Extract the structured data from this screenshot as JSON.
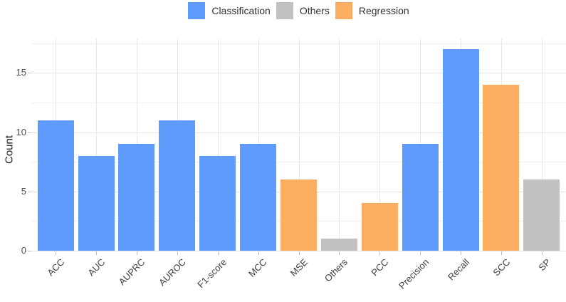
{
  "colors": {
    "classification": "#5E9BFC",
    "others": "#C1C1C1",
    "regression": "#FBAD62",
    "grid_major": "#E3E3E3",
    "grid_minor": "#EFEFEF",
    "grid_vertical": "#E7E7E7",
    "tick_mark": "#BDBDBD",
    "axis_text": "#404040",
    "background": "#FFFFFF"
  },
  "chart_data": {
    "type": "bar",
    "title": "",
    "xlabel": "",
    "ylabel": "Count",
    "categories": [
      "ACC",
      "AUC",
      "AUPRC",
      "AUROC",
      "F1-score",
      "MCC",
      "MSE",
      "Others",
      "PCC",
      "Precision",
      "Recall",
      "SCC",
      "SP"
    ],
    "values": [
      11,
      8,
      9,
      11,
      8,
      9,
      6,
      1,
      4,
      9,
      17,
      14,
      6
    ],
    "groups": [
      "Classification",
      "Classification",
      "Classification",
      "Classification",
      "Classification",
      "Classification",
      "Regression",
      "Others",
      "Regression",
      "Classification",
      "Classification",
      "Regression",
      "Others"
    ],
    "legend": [
      {
        "label": "Classification",
        "color": "#5E9BFC"
      },
      {
        "label": "Others",
        "color": "#C1C1C1"
      },
      {
        "label": "Regression",
        "color": "#FBAD62"
      }
    ],
    "legend_position": "top-center",
    "yticks": [
      0,
      5,
      10,
      15
    ],
    "ylim": [
      0,
      17.9
    ],
    "grid": {
      "h_major": [
        0,
        5,
        10,
        15
      ],
      "h_minor": [
        2.5,
        7.5,
        12.5,
        17.5
      ],
      "vertical_at_categories": true
    },
    "x_label_angle": 45
  }
}
